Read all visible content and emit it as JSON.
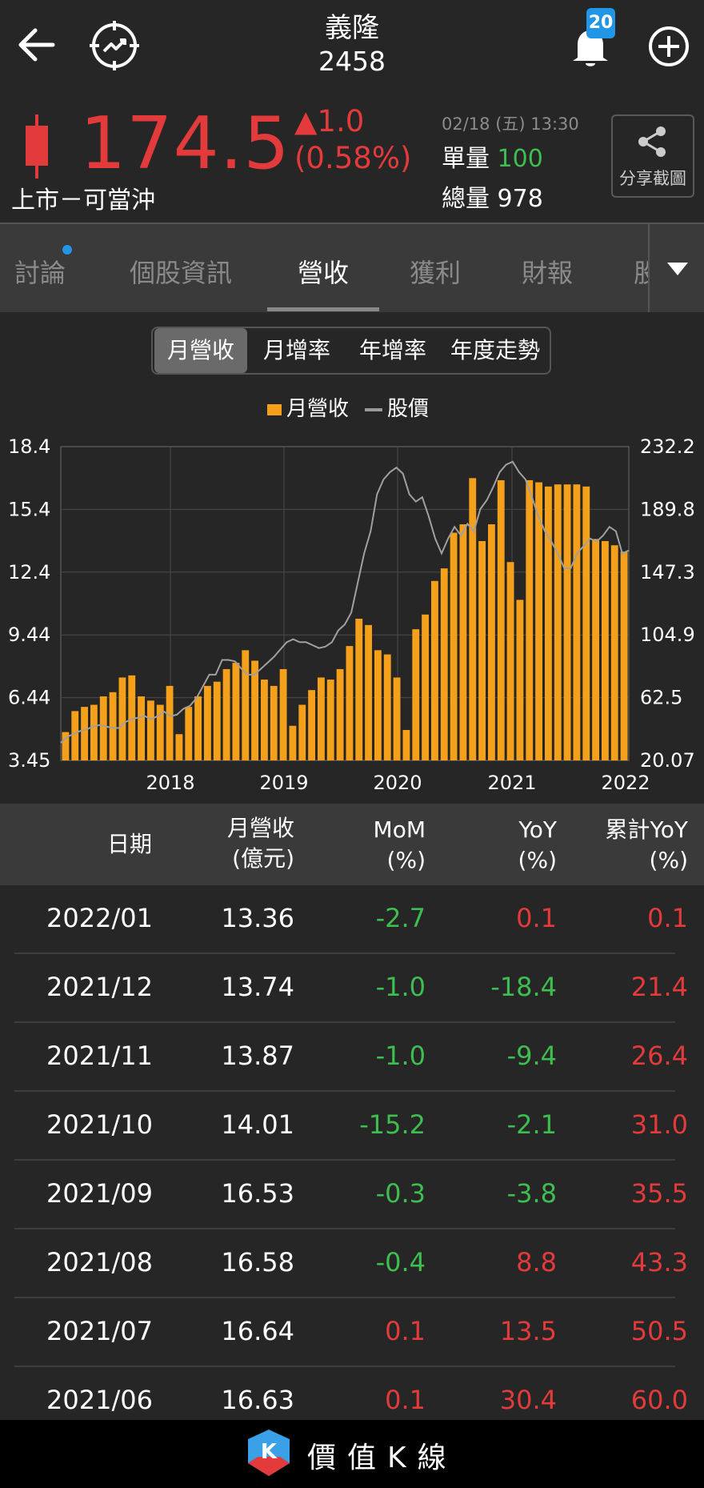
{
  "header": {
    "stock_name": "義隆",
    "stock_code": "2458",
    "notification_count": "20"
  },
  "quote": {
    "price": "174.5",
    "change": "▲1.0",
    "change_pct": "(0.58%)",
    "market": "上市－可當沖",
    "datetime": "02/18 (五) 13:30",
    "unit_volume_label": "單量",
    "unit_volume": "100",
    "total_volume_label": "總量",
    "total_volume": "978",
    "share_label": "分享截圖"
  },
  "tabs": [
    {
      "label": "討論"
    },
    {
      "label": "個股資訊"
    },
    {
      "label": "營收"
    },
    {
      "label": "獲利"
    },
    {
      "label": "財報"
    },
    {
      "label": "股"
    }
  ],
  "segment": [
    "月營收",
    "月增率",
    "年增率",
    "年度走勢"
  ],
  "legend": {
    "bar": "月營收",
    "line": "股價"
  },
  "colors": {
    "up": "#e33b3b",
    "down": "#3ebd50",
    "bar": "#f5a01a",
    "line": "#9a9a9a"
  },
  "chart_data": {
    "type": "bar",
    "x_ticks": [
      "2018",
      "2019",
      "2020",
      "2021",
      "2022"
    ],
    "y_left_ticks": [
      "18.4",
      "15.4",
      "12.4",
      "9.44",
      "6.44",
      "3.45"
    ],
    "y_right_ticks": [
      "232.2",
      "189.8",
      "147.3",
      "104.9",
      "62.5",
      "20.07"
    ],
    "y_left_range": [
      3.45,
      18.4
    ],
    "y_right_range": [
      20.07,
      232.2
    ],
    "grid": true,
    "series": [
      {
        "name": "月營收",
        "axis": "left",
        "values": [
          4.8,
          5.8,
          6.0,
          6.1,
          6.5,
          6.7,
          7.4,
          7.5,
          6.5,
          6.3,
          6.1,
          7.0,
          4.7,
          6.0,
          6.5,
          7.0,
          7.2,
          7.8,
          8.1,
          8.7,
          8.2,
          7.3,
          7.0,
          7.8,
          5.1,
          6.1,
          6.8,
          7.4,
          7.3,
          7.8,
          8.9,
          10.2,
          9.9,
          8.7,
          8.5,
          7.4,
          4.9,
          9.7,
          10.4,
          12.0,
          12.6,
          14.3,
          14.7,
          16.9,
          13.9,
          14.7,
          16.8,
          12.9,
          11.1,
          16.8,
          16.7,
          16.5,
          16.6,
          16.6,
          16.6,
          16.5,
          14.0,
          13.9,
          13.7,
          13.4
        ]
      },
      {
        "name": "股價",
        "axis": "right",
        "values": [
          32,
          36,
          38,
          40,
          41,
          43,
          44,
          43,
          42,
          42,
          46,
          48,
          49,
          50,
          48,
          50,
          53,
          50,
          51,
          55,
          57,
          62,
          70,
          78,
          78,
          88,
          88,
          87,
          82,
          78,
          78,
          82,
          86,
          90,
          95,
          100,
          102,
          100,
          100,
          98,
          96,
          97,
          100,
          108,
          112,
          120,
          140,
          160,
          175,
          200,
          210,
          215,
          218,
          214,
          200,
          195,
          198,
          185,
          170,
          160,
          170,
          178,
          172,
          180,
          175,
          190,
          196,
          205,
          215,
          220,
          222,
          215,
          210,
          198,
          185,
          175,
          168,
          160,
          150,
          150,
          160,
          165,
          170,
          168,
          172,
          178,
          175,
          160,
          162
        ]
      }
    ]
  },
  "table": {
    "headers": [
      {
        "l1": "日期",
        "l2": ""
      },
      {
        "l1": "月營收",
        "l2": "(億元)"
      },
      {
        "l1": "MoM",
        "l2": "(%)"
      },
      {
        "l1": "YoY",
        "l2": "(%)"
      },
      {
        "l1": "累計YoY",
        "l2": "(%)"
      }
    ],
    "rows": [
      {
        "date": "2022/01",
        "rev": "13.36",
        "mom": "-2.7",
        "yoy": "0.1",
        "cum": "0.1"
      },
      {
        "date": "2021/12",
        "rev": "13.74",
        "mom": "-1.0",
        "yoy": "-18.4",
        "cum": "21.4"
      },
      {
        "date": "2021/11",
        "rev": "13.87",
        "mom": "-1.0",
        "yoy": "-9.4",
        "cum": "26.4"
      },
      {
        "date": "2021/10",
        "rev": "14.01",
        "mom": "-15.2",
        "yoy": "-2.1",
        "cum": "31.0"
      },
      {
        "date": "2021/09",
        "rev": "16.53",
        "mom": "-0.3",
        "yoy": "-3.8",
        "cum": "35.5"
      },
      {
        "date": "2021/08",
        "rev": "16.58",
        "mom": "-0.4",
        "yoy": "8.8",
        "cum": "43.3"
      },
      {
        "date": "2021/07",
        "rev": "16.64",
        "mom": "0.1",
        "yoy": "13.5",
        "cum": "50.5"
      },
      {
        "date": "2021/06",
        "rev": "16.63",
        "mom": "0.1",
        "yoy": "30.4",
        "cum": "60.0"
      }
    ]
  },
  "footer": {
    "app_name": "價值K線"
  }
}
